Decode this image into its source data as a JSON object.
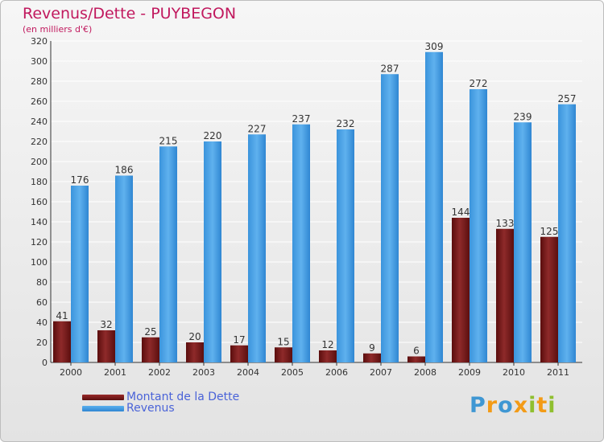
{
  "chart_data": {
    "type": "bar",
    "title": "Revenus/Dette - PUYBEGON",
    "subtitle": "(en milliers d'€)",
    "categories": [
      "2000",
      "2001",
      "2002",
      "2003",
      "2004",
      "2005",
      "2006",
      "2007",
      "2008",
      "2009",
      "2010",
      "2011"
    ],
    "series": [
      {
        "name": "Montant de la Dette",
        "color": "#7a1f1f",
        "values": [
          41,
          32,
          25,
          20,
          17,
          15,
          12,
          9,
          6,
          144,
          133,
          125
        ]
      },
      {
        "name": "Revenus",
        "color": "#4fa3e6",
        "values": [
          176,
          186,
          215,
          220,
          227,
          237,
          232,
          287,
          309,
          272,
          239,
          257
        ]
      }
    ],
    "ylim": [
      0,
      320
    ],
    "yticks": [
      0,
      20,
      40,
      60,
      80,
      100,
      120,
      140,
      160,
      180,
      200,
      220,
      240,
      260,
      280,
      300,
      320
    ],
    "grid": true,
    "legend_position": "bottom-left"
  },
  "legend": {
    "items": [
      {
        "label": "Montant de la Dette"
      },
      {
        "label": "Revenus"
      }
    ]
  },
  "logo": {
    "text": "Proxiti"
  }
}
